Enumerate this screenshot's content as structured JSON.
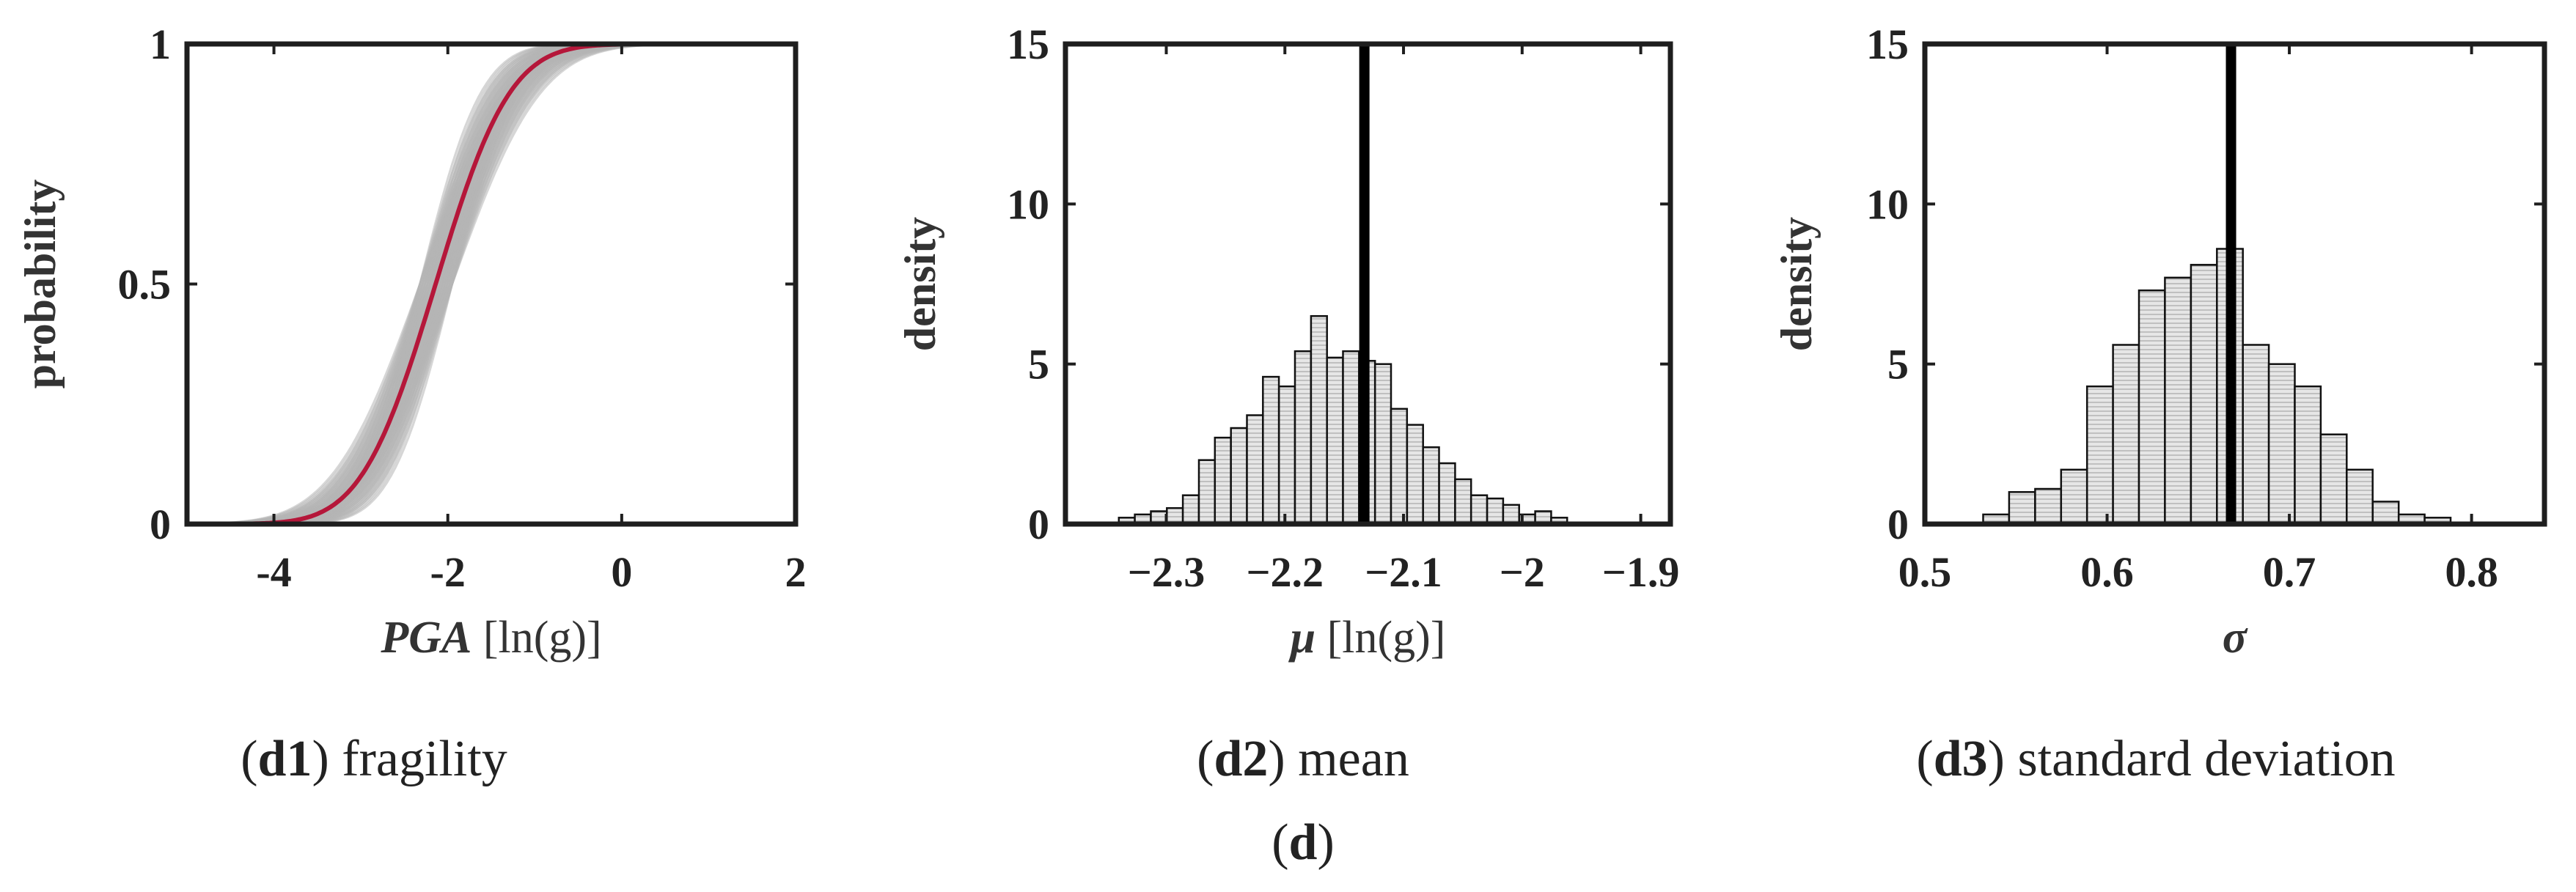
{
  "figure_label": "d",
  "colors": {
    "axis": "#1e1e1e",
    "median_curve": "#b5173a",
    "sample_curves": "#b4b4b4",
    "bar_fill": "#e6e6e6",
    "mean_line": "#000000"
  },
  "chart_data": [
    {
      "id": "d1",
      "type": "line",
      "caption_label": "d1",
      "caption_text": "fragility",
      "xlabel_symbol": "PGA",
      "xlabel_unit": "[ln(g)]",
      "ylabel": "probability",
      "xlim": [
        -5,
        2
      ],
      "ylim": [
        0,
        1
      ],
      "xticks": [
        -4,
        -2,
        0,
        2
      ],
      "xtick_labels": [
        "-4",
        "-2",
        "0",
        "2"
      ],
      "yticks": [
        0,
        0.5,
        1
      ],
      "ytick_labels": [
        "0",
        "0.5",
        "1"
      ],
      "grid": false,
      "series": [
        {
          "kind": "median",
          "mu": -2.14,
          "sigma": 0.67
        },
        {
          "kind": "samples",
          "mu_range": [
            -2.32,
            -1.95
          ],
          "sigma_range": [
            0.55,
            0.8
          ]
        }
      ]
    },
    {
      "id": "d2",
      "type": "histogram",
      "caption_label": "d2",
      "caption_text": "mean",
      "xlabel_symbol": "μ",
      "xlabel_unit": "[ln(g)]",
      "ylabel": "density",
      "xlim": [
        -2.385,
        -1.875
      ],
      "ylim": [
        0,
        15
      ],
      "xticks": [
        -2.3,
        -2.2,
        -2.1,
        -2.0,
        -1.9
      ],
      "xtick_labels": [
        "−2.3",
        "−2.2",
        "−2.1",
        "−2",
        "−1.9"
      ],
      "yticks": [
        0,
        5,
        10,
        15
      ],
      "ytick_labels": [
        "0",
        "5",
        "10",
        "15"
      ],
      "grid": false,
      "bin_start": -2.34,
      "bin_width": 0.0135,
      "values": [
        0.2,
        0.3,
        0.4,
        0.5,
        0.9,
        2.0,
        2.7,
        3.0,
        3.4,
        4.6,
        4.3,
        5.4,
        6.5,
        5.2,
        5.4,
        5.1,
        5.0,
        3.6,
        3.1,
        2.4,
        1.9,
        1.4,
        0.9,
        0.8,
        0.6,
        0.3,
        0.4,
        0.2
      ],
      "mean_line": -2.133
    },
    {
      "id": "d3",
      "type": "histogram",
      "caption_label": "d3",
      "caption_text": "standard deviation",
      "xlabel_symbol": "σ",
      "xlabel_unit": "",
      "ylabel": "density",
      "xlim": [
        0.5,
        0.84
      ],
      "ylim": [
        0,
        15
      ],
      "xticks": [
        0.5,
        0.6,
        0.7,
        0.8
      ],
      "xtick_labels": [
        "0.5",
        "0.6",
        "0.7",
        "0.8"
      ],
      "yticks": [
        0,
        5,
        10,
        15
      ],
      "ytick_labels": [
        "0",
        "5",
        "10",
        "15"
      ],
      "grid": false,
      "bin_start": 0.532,
      "bin_width": 0.01425,
      "values": [
        0.3,
        1.0,
        1.1,
        1.7,
        4.3,
        5.6,
        7.3,
        7.7,
        8.1,
        8.6,
        5.6,
        5.0,
        4.3,
        2.8,
        1.7,
        0.7,
        0.3,
        0.2
      ],
      "mean_line": 0.668
    }
  ]
}
